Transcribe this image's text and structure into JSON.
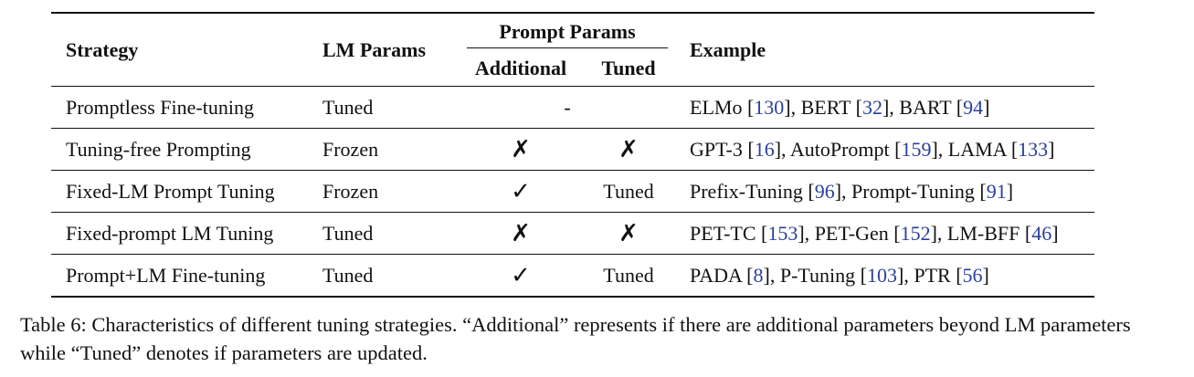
{
  "headers": {
    "strategy": "Strategy",
    "lm_params": "LM Params",
    "prompt_params": "Prompt Params",
    "additional": "Additional",
    "tuned": "Tuned",
    "example": "Example"
  },
  "rows": [
    {
      "strategy": "Promptless Fine-tuning",
      "lm": "Tuned",
      "prompt_merged": "-",
      "additional": "",
      "tuned": "",
      "examples": [
        {
          "name": "ELMo",
          "ref": "130"
        },
        {
          "name": "BERT",
          "ref": "32"
        },
        {
          "name": "BART",
          "ref": "94"
        }
      ]
    },
    {
      "strategy": "Tuning-free Prompting",
      "lm": "Frozen",
      "prompt_merged": "",
      "additional": "✗",
      "tuned": "✗",
      "examples": [
        {
          "name": "GPT-3",
          "ref": "16"
        },
        {
          "name": "AutoPrompt",
          "ref": "159"
        },
        {
          "name": "LAMA",
          "ref": "133"
        }
      ]
    },
    {
      "strategy": "Fixed-LM Prompt Tuning",
      "lm": "Frozen",
      "prompt_merged": "",
      "additional": "✓",
      "tuned": "Tuned",
      "examples": [
        {
          "name": "Prefix-Tuning",
          "ref": "96"
        },
        {
          "name": "Prompt-Tuning",
          "ref": "91"
        }
      ]
    },
    {
      "strategy": "Fixed-prompt LM Tuning",
      "lm": "Tuned",
      "prompt_merged": "",
      "additional": "✗",
      "tuned": "✗",
      "examples": [
        {
          "name": "PET-TC",
          "ref": "153"
        },
        {
          "name": "PET-Gen",
          "ref": "152"
        },
        {
          "name": "LM-BFF",
          "ref": "46"
        }
      ]
    },
    {
      "strategy": "Prompt+LM Fine-tuning",
      "lm": "Tuned",
      "prompt_merged": "",
      "additional": "✓",
      "tuned": "Tuned",
      "examples": [
        {
          "name": "PADA",
          "ref": "8"
        },
        {
          "name": "P-Tuning",
          "ref": "103"
        },
        {
          "name": "PTR",
          "ref": "56"
        }
      ]
    }
  ],
  "caption": {
    "text": "Table 6: Characteristics of different tuning strategies. “Additional” represents if there are additional parameters beyond LM parameters while “Tuned” denotes if parameters are updated."
  },
  "colors": {
    "text": "#111111",
    "citation": "#2a3f9e"
  }
}
